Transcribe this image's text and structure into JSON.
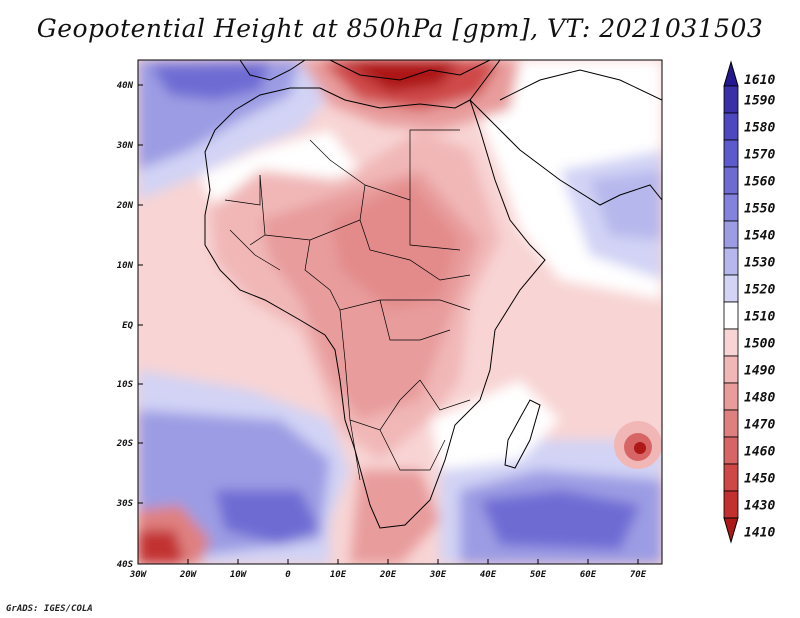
{
  "title": "Geopotential Height at 850hPa [gpm], VT: 2021031503",
  "credit": "GrADS: IGES/COLA",
  "lon_ticks": [
    "30W",
    "20W",
    "10W",
    "0",
    "10E",
    "20E",
    "30E",
    "40E",
    "50E",
    "60E",
    "70E"
  ],
  "lat_ticks": [
    "40N",
    "30N",
    "20N",
    "10N",
    "EQ",
    "10S",
    "20S",
    "30S",
    "40S"
  ],
  "colorbar": {
    "labels": [
      "1610",
      "1590",
      "1580",
      "1570",
      "1560",
      "1550",
      "1540",
      "1530",
      "1520",
      "1510",
      "1500",
      "1490",
      "1480",
      "1470",
      "1460",
      "1450",
      "1430",
      "1410"
    ],
    "colors": [
      "#23188f",
      "#3a2fa6",
      "#4e48c0",
      "#5d5acc",
      "#6e6cd3",
      "#8382dc",
      "#9c9ce4",
      "#b6b7ec",
      "#d2d3f5",
      "#ffffff",
      "#f8d4d4",
      "#f1b7b7",
      "#e89c9c",
      "#df8080",
      "#d86565",
      "#cf4848",
      "#c23030",
      "#ad1818"
    ]
  },
  "map_regions": {
    "south_atlantic_low": "south-atlantic-low-region",
    "south_indian_low": "south-indian-low-region",
    "mediterranean_high": "mediterranean-high-region",
    "mascarene_cell": "mascarene-cell"
  }
}
